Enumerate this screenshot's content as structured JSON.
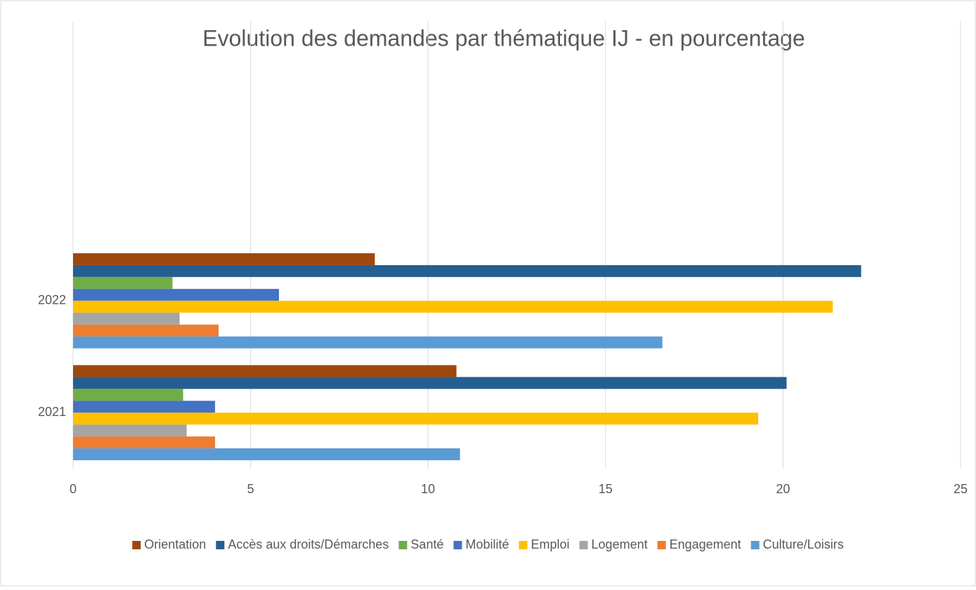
{
  "chart_data": {
    "type": "bar",
    "orientation": "horizontal",
    "title": "Evolution des demandes par thématique IJ - en pourcentage",
    "categories": [
      "2021",
      "2022",
      null,
      null
    ],
    "series": [
      {
        "name": "Orientation",
        "color": "#9e480e",
        "values": [
          10.8,
          8.5,
          null,
          null
        ]
      },
      {
        "name": "Accès aux droits/Démarches",
        "color": "#255e91",
        "values": [
          20.1,
          22.2,
          null,
          null
        ]
      },
      {
        "name": "Santé",
        "color": "#70ad47",
        "values": [
          3.1,
          2.8,
          null,
          null
        ]
      },
      {
        "name": "Mobilité",
        "color": "#4472c4",
        "values": [
          4.0,
          5.8,
          null,
          null
        ]
      },
      {
        "name": "Emploi",
        "color": "#ffc000",
        "values": [
          19.3,
          21.4,
          null,
          null
        ]
      },
      {
        "name": "Logement",
        "color": "#a5a5a5",
        "values": [
          3.2,
          3.0,
          null,
          null
        ]
      },
      {
        "name": "Engagement",
        "color": "#ed7d31",
        "values": [
          4.0,
          4.1,
          null,
          null
        ]
      },
      {
        "name": "Culture/Loisirs",
        "color": "#5b9bd5",
        "values": [
          10.9,
          16.6,
          null,
          null
        ]
      }
    ],
    "xlim": [
      0,
      25
    ],
    "xticks": [
      0,
      5,
      10,
      15,
      20,
      25
    ],
    "grid": true,
    "legend": "bottom"
  }
}
